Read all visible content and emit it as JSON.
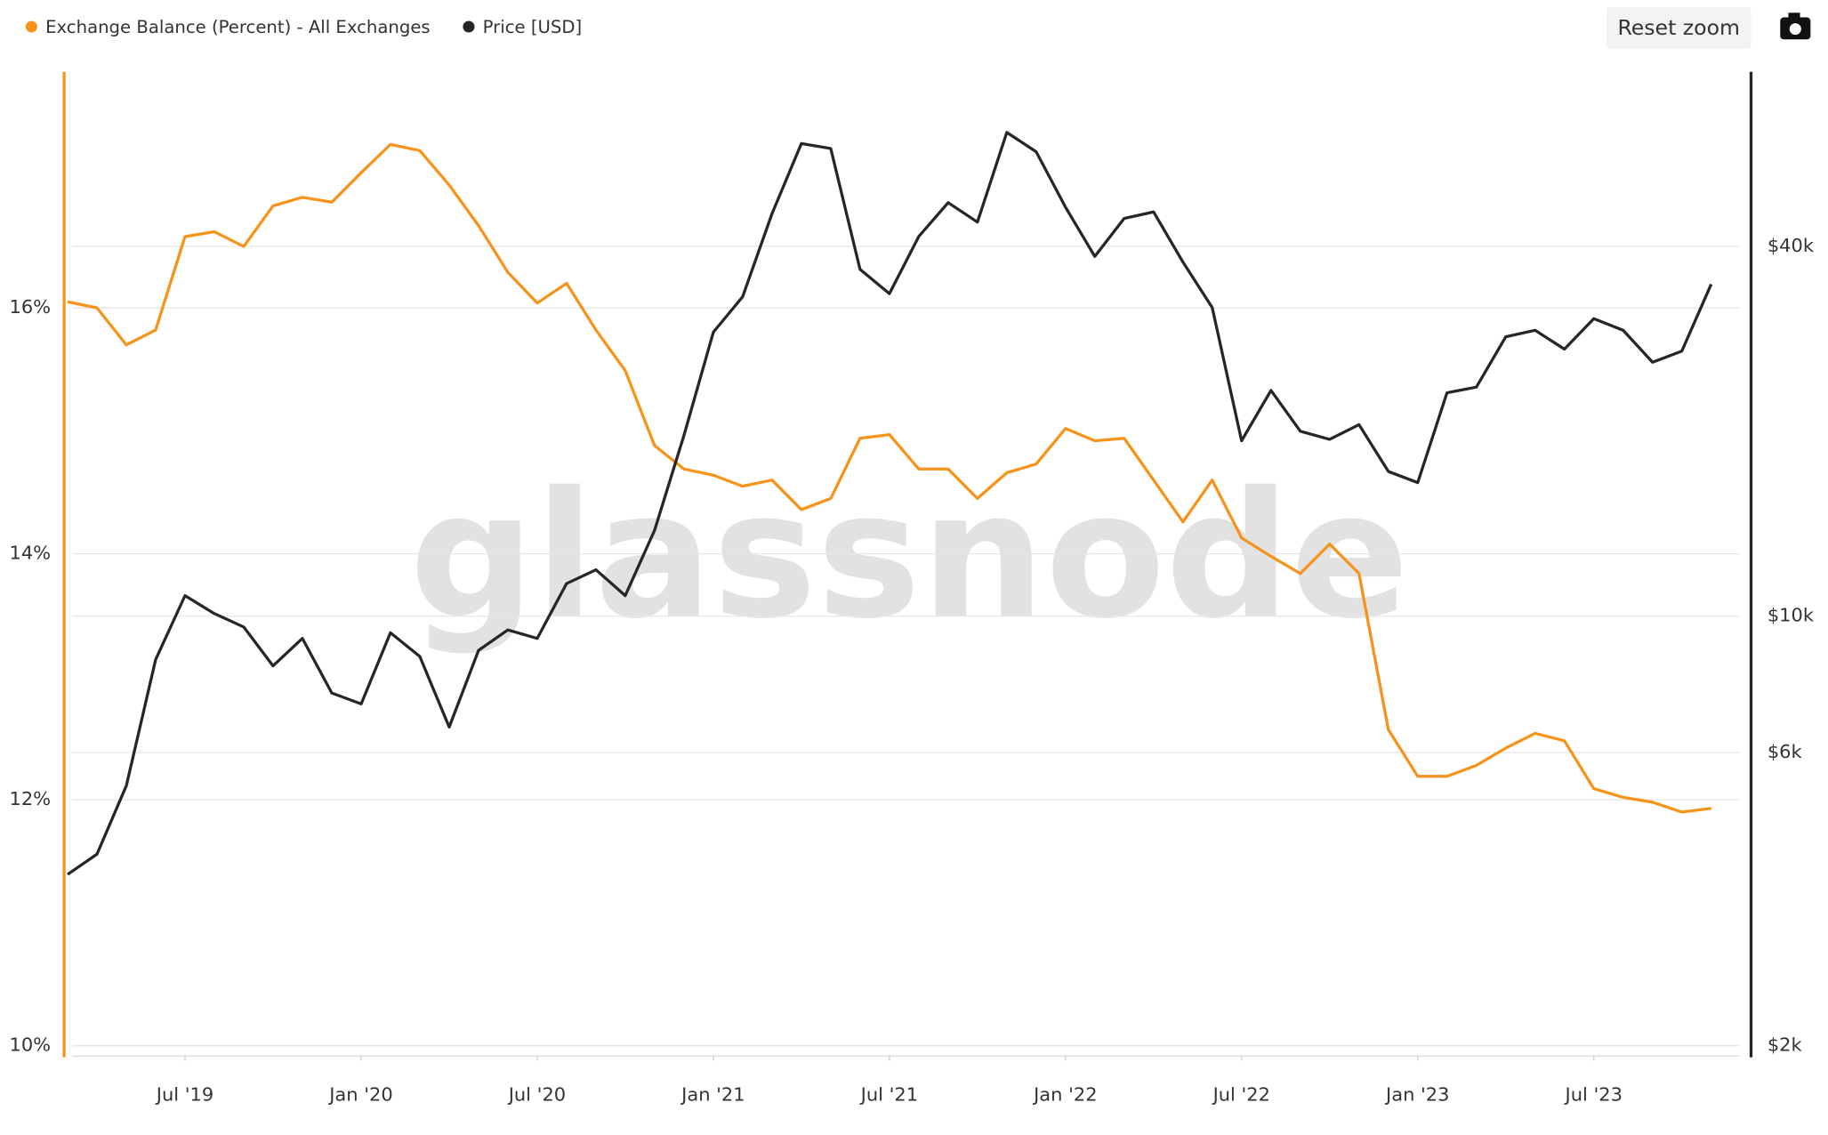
{
  "chart_data": {
    "type": "line",
    "watermark": "glassnode",
    "button": "Reset zoom",
    "x": [
      "2019-03",
      "2019-04",
      "2019-05",
      "2019-06",
      "2019-07",
      "2019-08",
      "2019-09",
      "2019-10",
      "2019-11",
      "2019-12",
      "2020-01",
      "2020-02",
      "2020-03",
      "2020-04",
      "2020-05",
      "2020-06",
      "2020-07",
      "2020-08",
      "2020-09",
      "2020-10",
      "2020-11",
      "2020-12",
      "2021-01",
      "2021-02",
      "2021-03",
      "2021-04",
      "2021-05",
      "2021-06",
      "2021-07",
      "2021-08",
      "2021-09",
      "2021-10",
      "2021-11",
      "2021-12",
      "2022-01",
      "2022-02",
      "2022-03",
      "2022-04",
      "2022-05",
      "2022-06",
      "2022-07",
      "2022-08",
      "2022-09",
      "2022-10",
      "2022-11",
      "2022-12",
      "2023-01",
      "2023-02",
      "2023-03",
      "2023-04",
      "2023-05",
      "2023-06",
      "2023-07",
      "2023-08",
      "2023-09",
      "2023-10",
      "2023-11"
    ],
    "series": [
      {
        "name": "Exchange Balance (Percent) - All Exchanges",
        "color": "#f7931a",
        "values": [
          16.05,
          16.0,
          15.7,
          15.82,
          16.58,
          16.62,
          16.5,
          16.83,
          16.9,
          16.86,
          17.1,
          17.33,
          17.28,
          17.0,
          16.67,
          16.29,
          16.04,
          16.2,
          15.82,
          15.49,
          14.88,
          14.69,
          14.64,
          14.55,
          14.6,
          14.36,
          14.45,
          14.94,
          14.97,
          14.69,
          14.69,
          14.45,
          14.66,
          14.73,
          15.02,
          14.92,
          14.94,
          14.6,
          14.26,
          14.6,
          14.13,
          13.98,
          13.84,
          14.08,
          13.84,
          12.57,
          12.19,
          12.19,
          12.28,
          12.42,
          12.54,
          12.48,
          12.09,
          12.02,
          11.98,
          11.9,
          11.93
        ]
      },
      {
        "name": "Price [USD]",
        "color": "#262626",
        "axis": "y2",
        "values": [
          3800,
          4100,
          5300,
          8500,
          10800,
          10100,
          9600,
          8300,
          9200,
          7500,
          7200,
          9400,
          8600,
          6600,
          8800,
          9500,
          9200,
          11300,
          11900,
          10800,
          13800,
          19700,
          29000,
          33100,
          45200,
          58800,
          57700,
          36700,
          33500,
          41500,
          47100,
          43800,
          61300,
          57000,
          46300,
          38500,
          44400,
          45500,
          37700,
          31800,
          19300,
          23300,
          20000,
          19400,
          20500,
          17200,
          16500,
          23100,
          23600,
          28500,
          29200,
          27200,
          30500,
          29200,
          25900,
          27000,
          34700
        ]
      }
    ],
    "xlim": [
      "2019-03",
      "2023-12"
    ],
    "xticks": [
      {
        "value": "2019-07",
        "label": "Jul '19"
      },
      {
        "value": "2020-01",
        "label": "Jan '20"
      },
      {
        "value": "2020-07",
        "label": "Jul '20"
      },
      {
        "value": "2021-01",
        "label": "Jan '21"
      },
      {
        "value": "2021-07",
        "label": "Jul '21"
      },
      {
        "value": "2022-01",
        "label": "Jan '22"
      },
      {
        "value": "2022-07",
        "label": "Jul '22"
      },
      {
        "value": "2023-01",
        "label": "Jan '23"
      },
      {
        "value": "2023-07",
        "label": "Jul '23"
      }
    ],
    "ylim": [
      10,
      17.92
    ],
    "yticks": [
      {
        "value": 10,
        "label": "10%"
      },
      {
        "value": 12,
        "label": "12%"
      },
      {
        "value": 14,
        "label": "14%"
      },
      {
        "value": 16,
        "label": "16%"
      }
    ],
    "y2lim": [
      2000,
      76900
    ],
    "y2log": true,
    "y2ticks": [
      {
        "value": 2000,
        "label": "$2k"
      },
      {
        "value": 6000,
        "label": "$6k"
      },
      {
        "value": 10000,
        "label": "$10k"
      },
      {
        "value": 40000,
        "label": "$40k"
      }
    ],
    "grid": true
  }
}
